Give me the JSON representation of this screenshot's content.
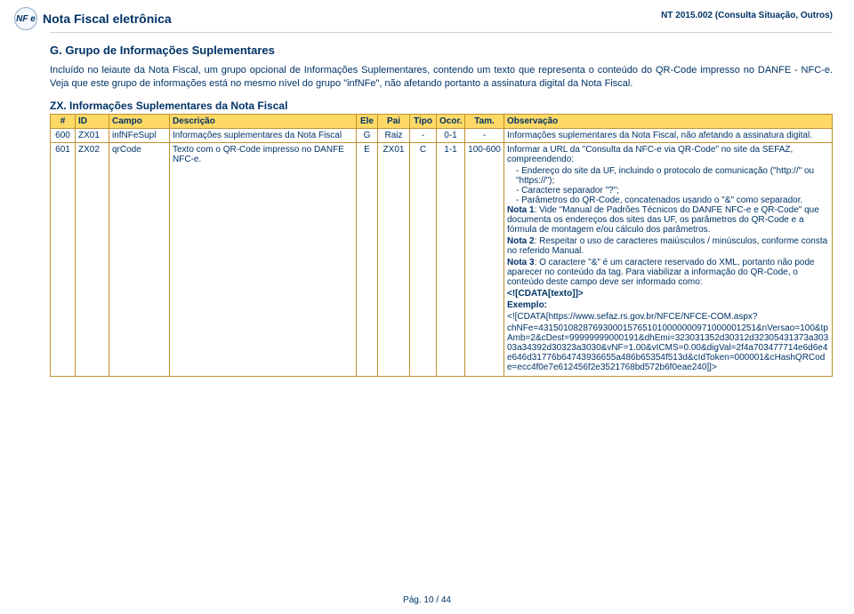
{
  "header": {
    "title": "Nota Fiscal eletrônica",
    "code": "NT 2015.002 (Consulta Situação, Outros)",
    "logo": "NF e"
  },
  "section": {
    "title": "G. Grupo de Informações Suplementares",
    "p1": "Incluído no leiaute da Nota Fiscal, um grupo opcional de Informações Suplementares, contendo um texto que representa o conteúdo do QR-Code impresso no DANFE - NFC-e. Veja que este grupo de informações está no mesmo nível do grupo \"infNFe\", não afetando portanto a assinatura digital da Nota Fiscal.",
    "sub": "ZX. Informações Suplementares da Nota Fiscal"
  },
  "table": {
    "headers": [
      "#",
      "ID",
      "Campo",
      "Descrição",
      "Ele",
      "Pai",
      "Tipo",
      "Ocor.",
      "Tam.",
      "Observação"
    ],
    "rows": [
      {
        "n": "600",
        "id": "ZX01",
        "campo": "infNFeSupl",
        "desc": "Informações suplementares da Nota Fiscal",
        "ele": "G",
        "pai": "Raiz",
        "tipo": "-",
        "ocor": "0-1",
        "tam": "-",
        "obs": "Informações suplementares da Nota Fiscal, não afetando a assinatura digital."
      },
      {
        "n": "601",
        "id": "ZX02",
        "campo": "qrCode",
        "desc": "Texto com o QR-Code impresso no DANFE NFC-e.",
        "ele": "E",
        "pai": "ZX01",
        "tipo": "C",
        "ocor": "1-1",
        "tam": "100-600",
        "obs_rich": {
          "lead": "Informar a URL da \"Consulta da NFC-e via QR-Code\" no site da SEFAZ, compreendendo:",
          "bul1": "- Endereço do site da UF, incluindo o protocolo de comunicação (\"http://\" ou \"https://\");",
          "bul2": "- Caractere separador \"?\";",
          "bul3": "- Parâmetros do QR-Code, concatenados usando o \"&\" como separador.",
          "n1a": "Nota 1",
          "n1b": ": Vide \"Manual de Padrões Técnicos do DANFE NFC-e e QR-Code\" que documenta os endereços dos sites das UF, os parâmetros do QR-Code e a fórmula de montagem e/ou cálculo dos parâmetros.",
          "n2a": "Nota 2",
          "n2b": ": Respeitar o uso de caracteres maiúsculos / minúsculos, conforme consta no referido Manual.",
          "n3a": "Nota 3",
          "n3b": ": O caractere \"&\" é um caractere reservado do XML, portanto não pode aparecer no conteúdo da tag. Para viabilizar a informação do QR-Code, o conteúdo deste campo deve ser informado como:",
          "cdata": "<![CDATA[texto]]>",
          "exlabel": "Exemplo:",
          "ex1": "<![CDATA[https://www.sefaz.rs.gov.br/NFCE/NFCE-COM.aspx?",
          "ex2": "chNFe=43150108287693000157651010000000971000001251&nVersao=100&tpAmb=2&cDest=99999999000191&dhEmi=323031352d30312d32305431373a30303a34392d30323a3030&vNF=1.00&vICMS=0.00&digVal=2f4a703477714e6d6e4e646d31776b64743936655a486b65354f513d&cIdToken=000001&cHashQRCode=ecc4f0e7e612456f2e3521768bd572b6f0eae240]]>"
        }
      }
    ]
  },
  "footer": "Pág. 10 / 44",
  "colors": {
    "brand": "#003366",
    "th_bg": "#ffd966",
    "th_border": "#c09030"
  }
}
